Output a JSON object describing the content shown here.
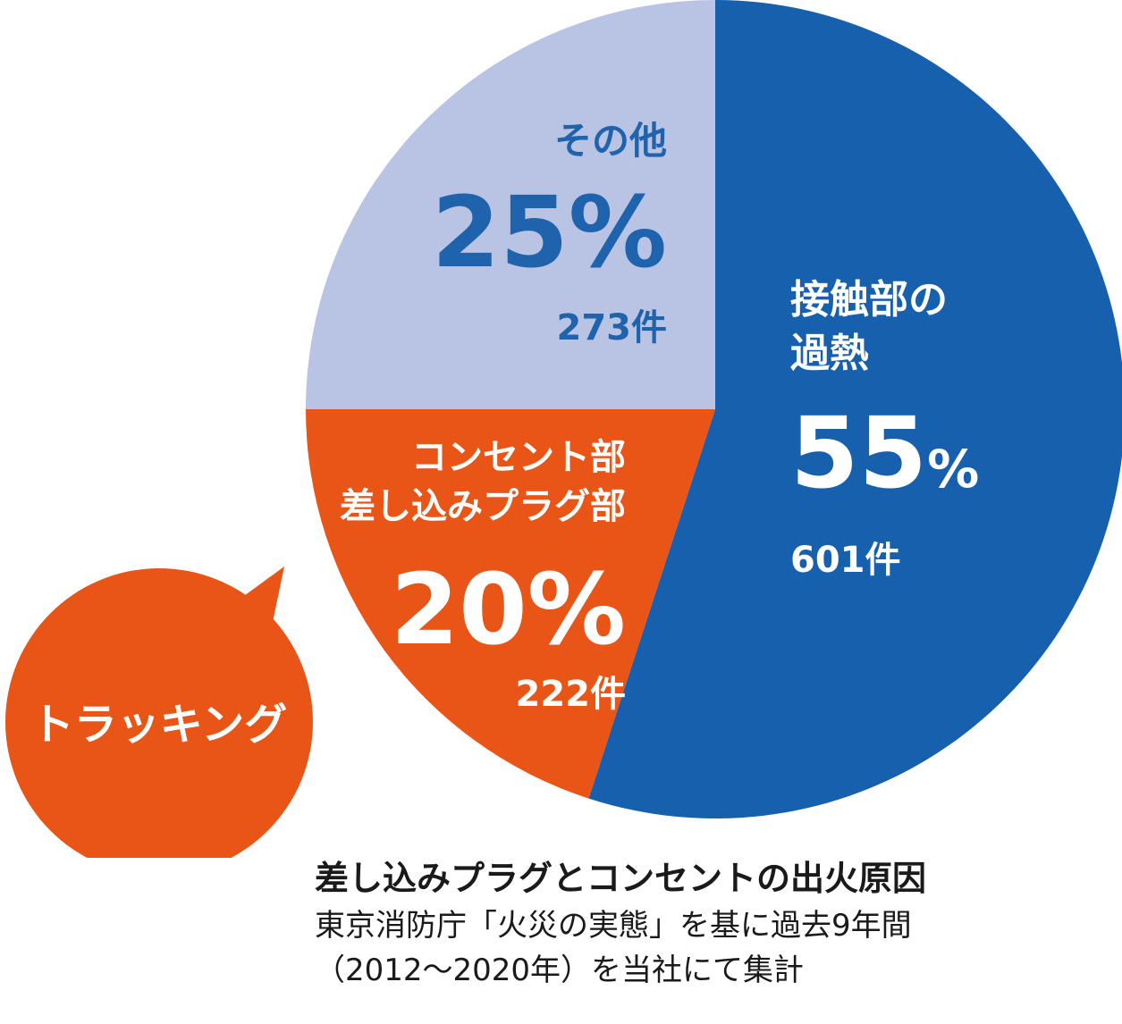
{
  "chart_data": {
    "type": "pie",
    "title": "差し込みプラグとコンセントの出火原因",
    "slices": [
      {
        "label_lines": [
          "接触部の",
          "過熱"
        ],
        "percent": 55,
        "percent_text": "55",
        "count": 601,
        "count_text": "601件",
        "color": "#1660ad",
        "text_color": "#ffffff"
      },
      {
        "label_lines": [
          "コンセント部",
          "差し込みプラグ部"
        ],
        "percent": 20,
        "percent_text": "20",
        "count": 222,
        "count_text": "222件",
        "color": "#e85517",
        "text_color": "#ffffff"
      },
      {
        "label_lines": [
          "その他"
        ],
        "percent": 25,
        "percent_text": "25",
        "count": 273,
        "count_text": "273件",
        "color": "#b9c3e3",
        "text_color": "#1e63ac"
      }
    ],
    "percent_sign": "%",
    "callout": {
      "text": "トラッキング",
      "color": "#e85517",
      "text_color": "#ffffff"
    }
  },
  "caption": {
    "title": "差し込みプラグとコンセントの出火原因",
    "note_lines": [
      "東京消防庁「火災の実態」を基に過去9年間",
      "（2012～2020年）を当社にて集計"
    ]
  }
}
